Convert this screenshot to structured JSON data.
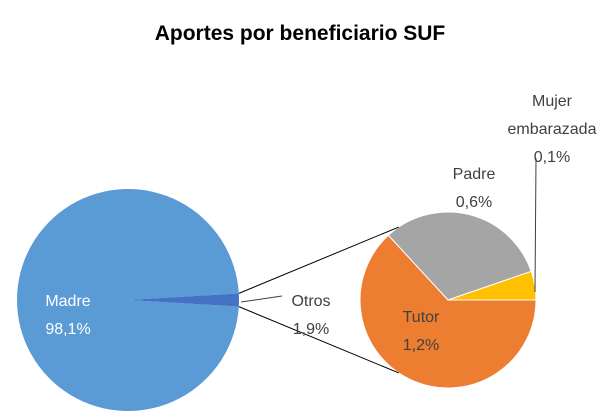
{
  "chart_data": {
    "type": "pie-of-pie",
    "title": "Aportes por beneficiario SUF",
    "categories": [
      "Madre",
      "Otros"
    ],
    "values": [
      98.1,
      1.9
    ],
    "value_labels": [
      "98,1%",
      "1,9%"
    ],
    "colors": [
      "#5b9bd5",
      "#4472c4"
    ],
    "secondary": {
      "categories": [
        "Tutor",
        "Padre",
        "Mujer embarazada"
      ],
      "values": [
        1.2,
        0.6,
        0.1
      ],
      "value_labels": [
        "1,2%",
        "0,6%",
        "0,1%"
      ],
      "colors": [
        "#ed7d31",
        "#a5a5a5",
        "#ffc000"
      ]
    }
  }
}
